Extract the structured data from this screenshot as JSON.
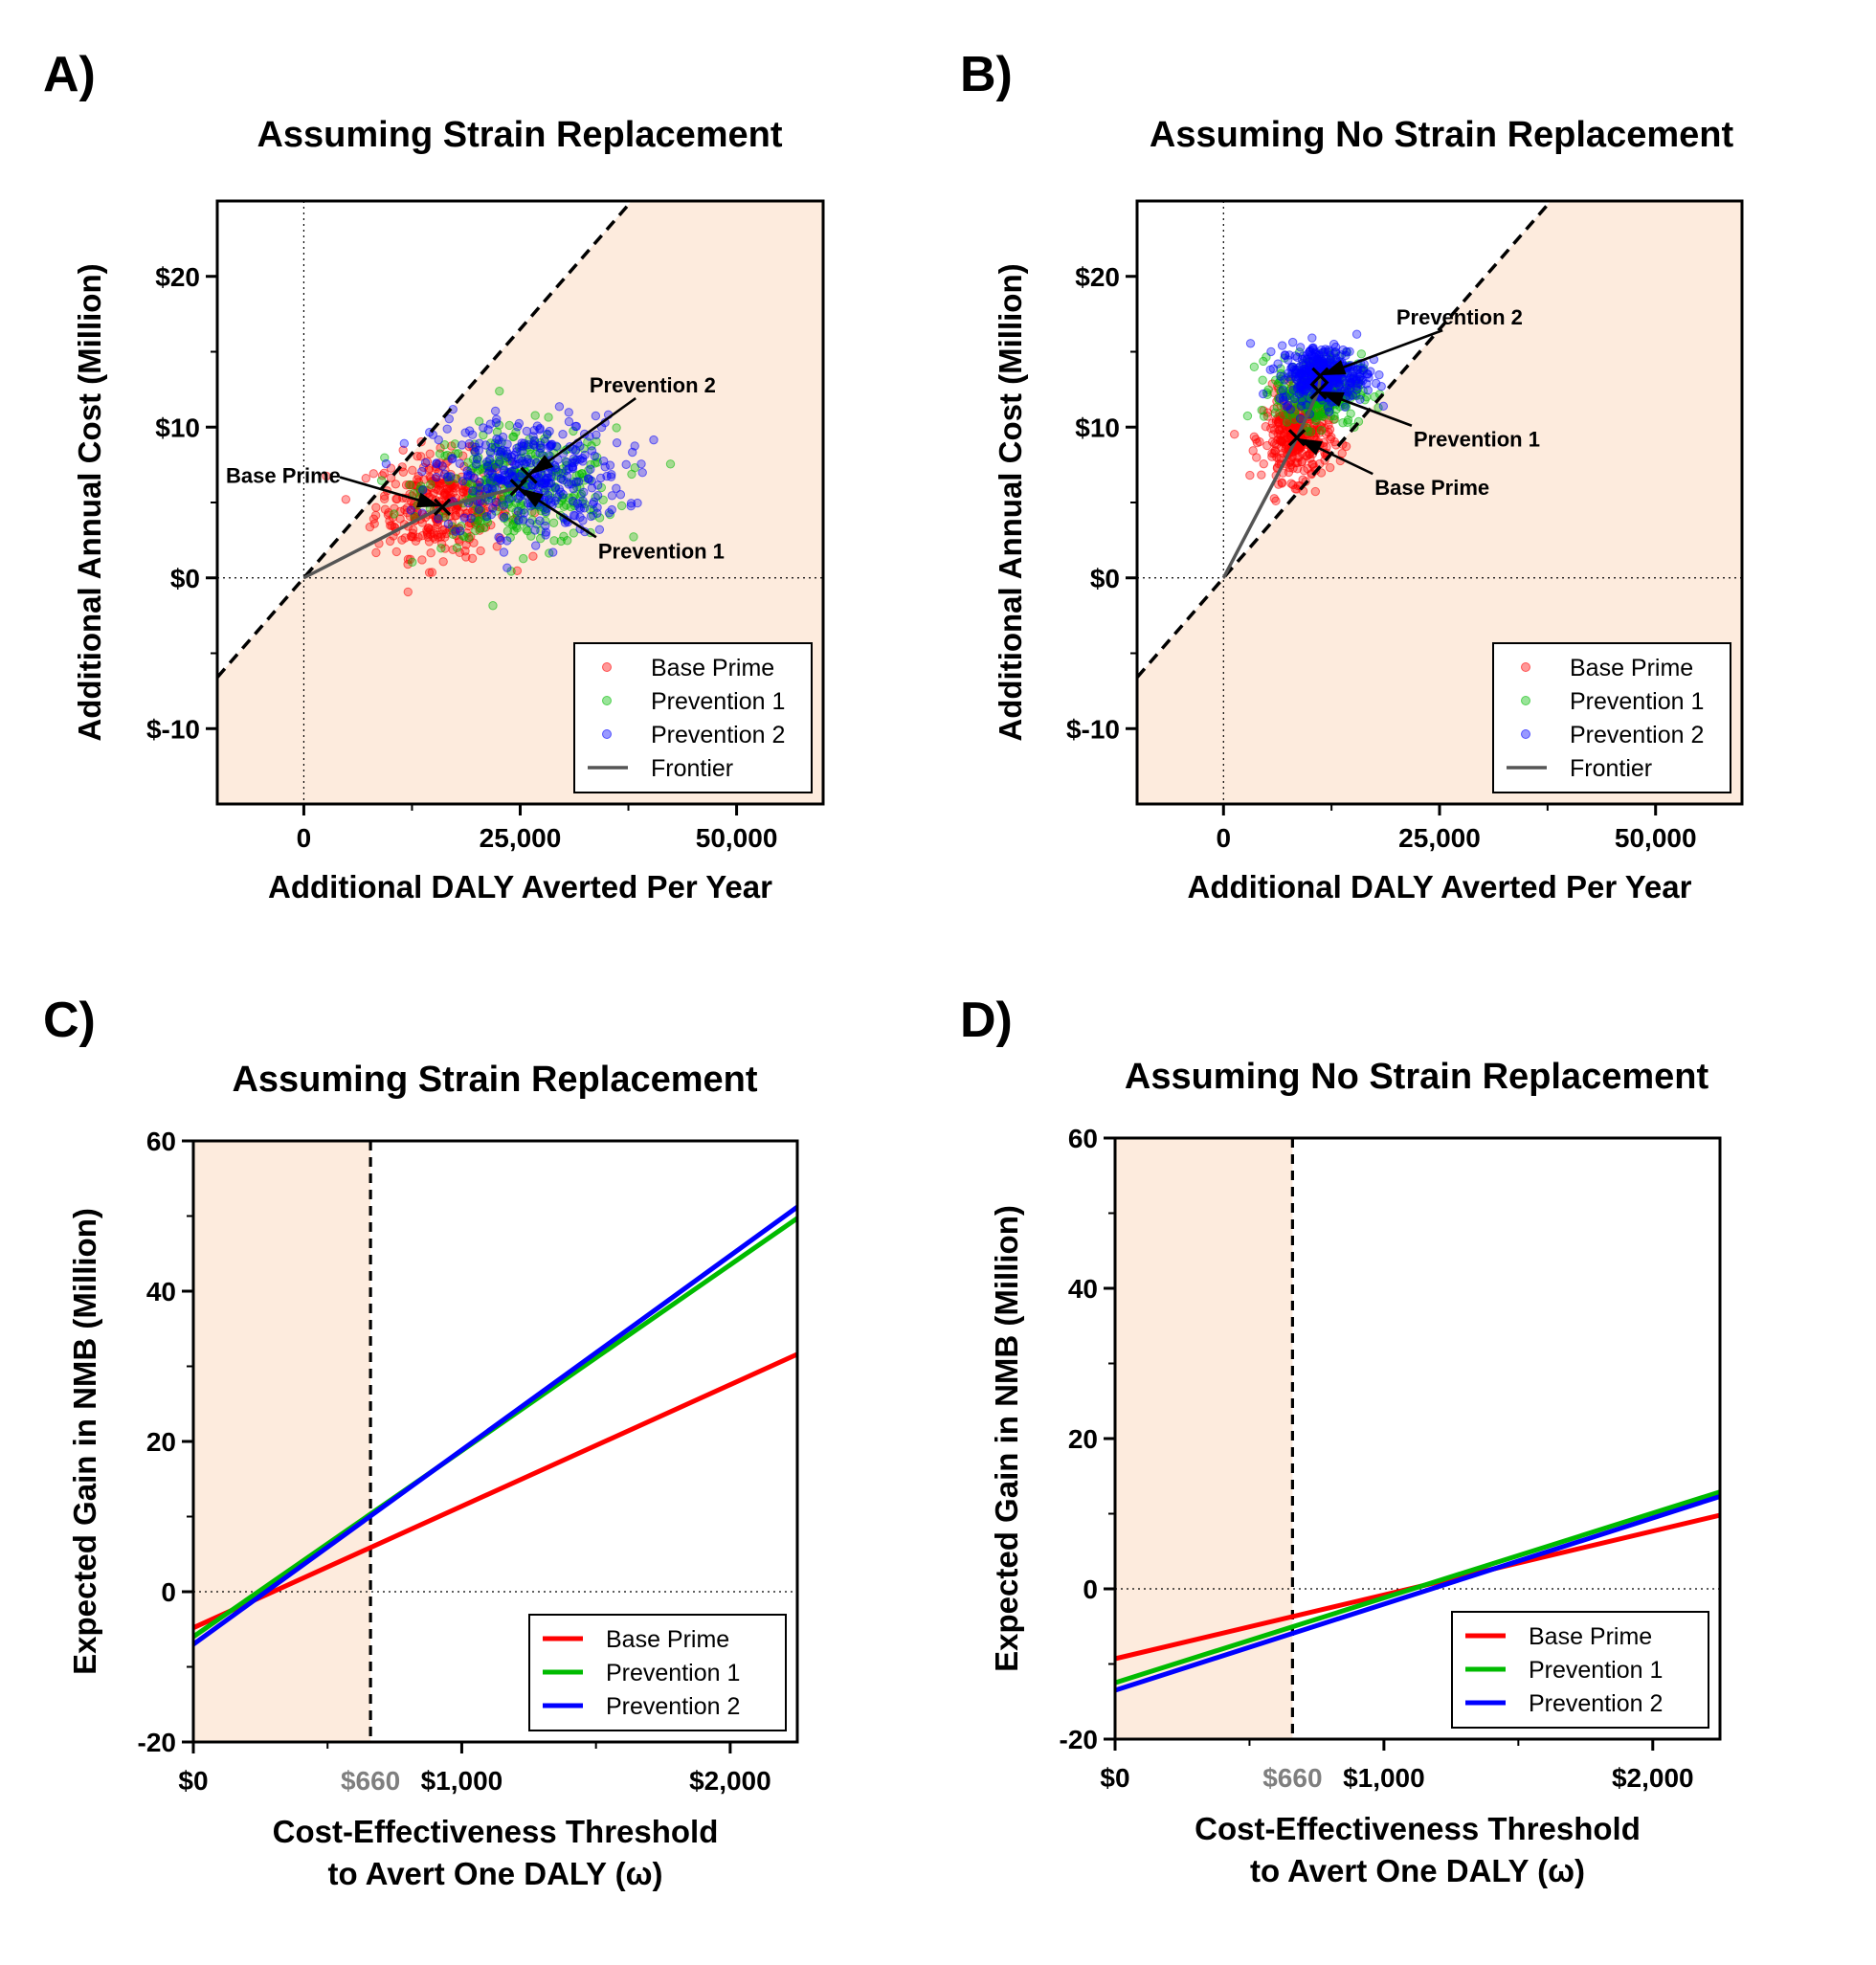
{
  "colors": {
    "shade": "#FDEBDD",
    "base_prime": "#FF0000",
    "prevention_1": "#00BB00",
    "prevention_2": "#0000FF",
    "frontier": "#555555"
  },
  "chart_data": [
    {
      "panel": "A)",
      "type": "scatter",
      "title": "Assuming Strain Replacement",
      "xlabel": "Additional DALY Averted Per Year",
      "ylabel": "Additional Annual Cost (Million)",
      "xlim": [
        -10000,
        60000
      ],
      "ylim": [
        -15,
        25
      ],
      "xticks": [
        0,
        25000,
        50000
      ],
      "xtick_labels": [
        "0",
        "25,000",
        "50,000"
      ],
      "yticks": [
        -10,
        0,
        10,
        20
      ],
      "ytick_labels": [
        "$-10",
        "$0",
        "$10",
        "$20"
      ],
      "threshold_line": "dashed",
      "shaded_region": "cost-effective (below threshold line)",
      "legend_position": "bottom-right",
      "series": [
        {
          "name": "Base Prime",
          "key": "base_prime",
          "n_points": 350,
          "center": [
            16000,
            4.8
          ],
          "spread": [
            7000,
            2.6
          ]
        },
        {
          "name": "Prevention 1",
          "key": "prevention_1",
          "n_points": 350,
          "center": [
            25000,
            6.0
          ],
          "spread": [
            10000,
            3.0
          ]
        },
        {
          "name": "Prevention 2",
          "key": "prevention_2",
          "n_points": 350,
          "center": [
            26000,
            6.8
          ],
          "spread": [
            10000,
            3.0
          ]
        }
      ],
      "means": [
        {
          "label": "Base Prime",
          "x": 16000,
          "y": 4.7
        },
        {
          "label": "Prevention 1",
          "x": 24800,
          "y": 6.0
        },
        {
          "label": "Prevention 2",
          "x": 26000,
          "y": 6.8
        }
      ],
      "frontier": {
        "name": "Frontier",
        "points": [
          [
            0,
            0
          ],
          [
            16000,
            4.7
          ],
          [
            24800,
            6.0
          ],
          [
            26000,
            6.8
          ]
        ]
      },
      "annotations": [
        {
          "text": "Base Prime",
          "target": [
            16000,
            4.7
          ],
          "text_at": [
            -9000,
            6.3
          ]
        },
        {
          "text": "Prevention 2",
          "target": [
            26000,
            6.8
          ],
          "text_at": [
            33000,
            12.3
          ]
        },
        {
          "text": "Prevention 1",
          "target": [
            24800,
            6.0
          ],
          "text_at": [
            34000,
            1.3
          ]
        }
      ]
    },
    {
      "panel": "B)",
      "type": "scatter",
      "title": "Assuming No Strain Replacement",
      "xlabel": "Additional DALY Averted Per Year",
      "ylabel": "Additional Annual Cost (Million)",
      "xlim": [
        -10000,
        60000
      ],
      "ylim": [
        -15,
        25
      ],
      "xticks": [
        0,
        25000,
        50000
      ],
      "xtick_labels": [
        "0",
        "25,000",
        "50,000"
      ],
      "yticks": [
        -10,
        0,
        10,
        20
      ],
      "ytick_labels": [
        "$-10",
        "$0",
        "$10",
        "$20"
      ],
      "threshold_line": "dashed",
      "shaded_region": "cost-effective (below threshold line)",
      "legend_position": "bottom-right",
      "series": [
        {
          "name": "Base Prime",
          "key": "base_prime",
          "n_points": 350,
          "center": [
            8500,
            9.3
          ],
          "spread": [
            3500,
            2.2
          ]
        },
        {
          "name": "Prevention 1",
          "key": "prevention_1",
          "n_points": 350,
          "center": [
            11000,
            12.5
          ],
          "spread": [
            4500,
            1.8
          ]
        },
        {
          "name": "Prevention 2",
          "key": "prevention_2",
          "n_points": 350,
          "center": [
            11500,
            13.5
          ],
          "spread": [
            4500,
            1.5
          ]
        }
      ],
      "means": [
        {
          "label": "Base Prime",
          "x": 8500,
          "y": 9.3
        },
        {
          "label": "Prevention 1",
          "x": 11000,
          "y": 12.4
        },
        {
          "label": "Prevention 2",
          "x": 11200,
          "y": 13.4
        }
      ],
      "frontier": {
        "name": "Frontier",
        "points": [
          [
            0,
            0
          ],
          [
            8500,
            9.3
          ],
          [
            11000,
            12.4
          ],
          [
            11200,
            13.4
          ]
        ]
      },
      "annotations": [
        {
          "text": "Prevention 2",
          "target": [
            11200,
            13.4
          ],
          "text_at": [
            20000,
            16.8
          ]
        },
        {
          "text": "Prevention 1",
          "target": [
            11000,
            12.4
          ],
          "text_at": [
            22000,
            8.7
          ]
        },
        {
          "text": "Base Prime",
          "target": [
            8500,
            9.3
          ],
          "text_at": [
            17500,
            5.5
          ]
        }
      ]
    },
    {
      "panel": "C)",
      "type": "line",
      "title": "Assuming Strain Replacement",
      "xlabel": [
        "Cost-Effectiveness Threshold",
        "to Avert One DALY (ω)"
      ],
      "ylabel": "Expected Gain in NMB (Million)",
      "xlim": [
        0,
        2250
      ],
      "ylim": [
        -20,
        60
      ],
      "xticks": [
        0,
        1000,
        2000
      ],
      "xtick_labels": [
        "$0",
        "$1,000",
        "$2,000"
      ],
      "threshold_marker": {
        "x": 660,
        "label": "$660"
      },
      "yticks": [
        -20,
        0,
        20,
        40,
        60
      ],
      "ytick_labels": [
        "-20",
        "0",
        "20",
        "40",
        "60"
      ],
      "legend_position": "bottom-right",
      "series": [
        {
          "name": "Base Prime",
          "key": "base_prime",
          "x": [
            0,
            2250
          ],
          "y": [
            -4.8,
            31.6
          ]
        },
        {
          "name": "Prevention 1",
          "key": "prevention_1",
          "x": [
            0,
            2250
          ],
          "y": [
            -6.0,
            49.7
          ]
        },
        {
          "name": "Prevention 2",
          "key": "prevention_2",
          "x": [
            0,
            2250
          ],
          "y": [
            -7.0,
            51.2
          ]
        }
      ]
    },
    {
      "panel": "D)",
      "type": "line",
      "title": "Assuming No Strain Replacement",
      "xlabel": [
        "Cost-Effectiveness Threshold",
        "to Avert One DALY (ω)"
      ],
      "ylabel": "Expected Gain in NMB (Million)",
      "xlim": [
        0,
        2250
      ],
      "ylim": [
        -20,
        60
      ],
      "xticks": [
        0,
        1000,
        2000
      ],
      "xtick_labels": [
        "$0",
        "$1,000",
        "$2,000"
      ],
      "threshold_marker": {
        "x": 660,
        "label": "$660"
      },
      "yticks": [
        -20,
        0,
        20,
        40,
        60
      ],
      "ytick_labels": [
        "-20",
        "0",
        "20",
        "40",
        "60"
      ],
      "legend_position": "bottom-right",
      "series": [
        {
          "name": "Base Prime",
          "key": "base_prime",
          "x": [
            0,
            2250
          ],
          "y": [
            -9.3,
            9.8
          ]
        },
        {
          "name": "Prevention 1",
          "key": "prevention_1",
          "x": [
            0,
            2250
          ],
          "y": [
            -12.5,
            12.9
          ]
        },
        {
          "name": "Prevention 2",
          "key": "prevention_2",
          "x": [
            0,
            2250
          ],
          "y": [
            -13.5,
            12.3
          ]
        }
      ]
    }
  ]
}
